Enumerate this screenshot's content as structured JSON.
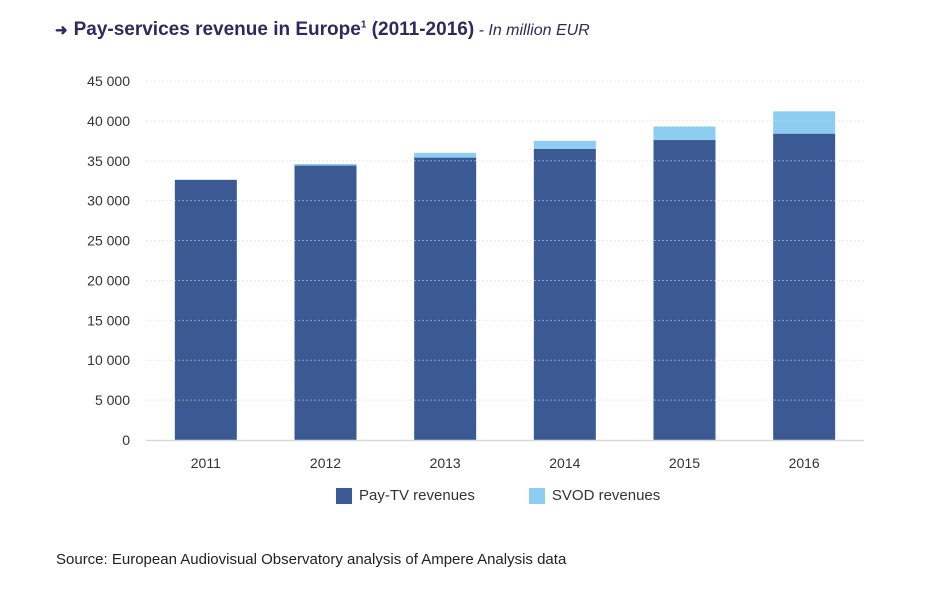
{
  "title": {
    "arrow": "➜",
    "main": "Pay-services revenue in Europe",
    "footnote_mark": "1",
    "years": " (2011-2016)",
    "unit": " - In million EUR"
  },
  "colors": {
    "pay_tv": "#3b5a94",
    "svod": "#8ecdf2",
    "grid": "#d0d8ea",
    "axis": "#d9d9d9"
  },
  "chart_data": {
    "type": "bar",
    "stacked": true,
    "title": "Pay-services revenue in Europe (2011-2016) - In million EUR",
    "xlabel": "",
    "ylabel": "",
    "categories": [
      "2011",
      "2012",
      "2013",
      "2014",
      "2015",
      "2016"
    ],
    "series": [
      {
        "name": "Pay-TV revenues",
        "values": [
          32600,
          34400,
          35400,
          36500,
          37600,
          38400
        ]
      },
      {
        "name": "SVOD revenues",
        "values": [
          50,
          200,
          600,
          1000,
          1700,
          2800
        ]
      }
    ],
    "ylim": [
      0,
      45000
    ],
    "yticks": [
      0,
      5000,
      10000,
      15000,
      20000,
      25000,
      30000,
      35000,
      40000,
      45000
    ],
    "ytick_labels": [
      "0",
      "5 000",
      "10 000",
      "15 000",
      "20 000",
      "25 000",
      "30 000",
      "35 000",
      "40 000",
      "45 000"
    ],
    "grid": true,
    "legend_position": "bottom"
  },
  "legend": [
    {
      "label": "Pay-TV revenues",
      "key": "pay_tv"
    },
    {
      "label": "SVOD revenues",
      "key": "svod"
    }
  ],
  "source": "Source: European Audiovisual Observatory analysis of Ampere Analysis data"
}
